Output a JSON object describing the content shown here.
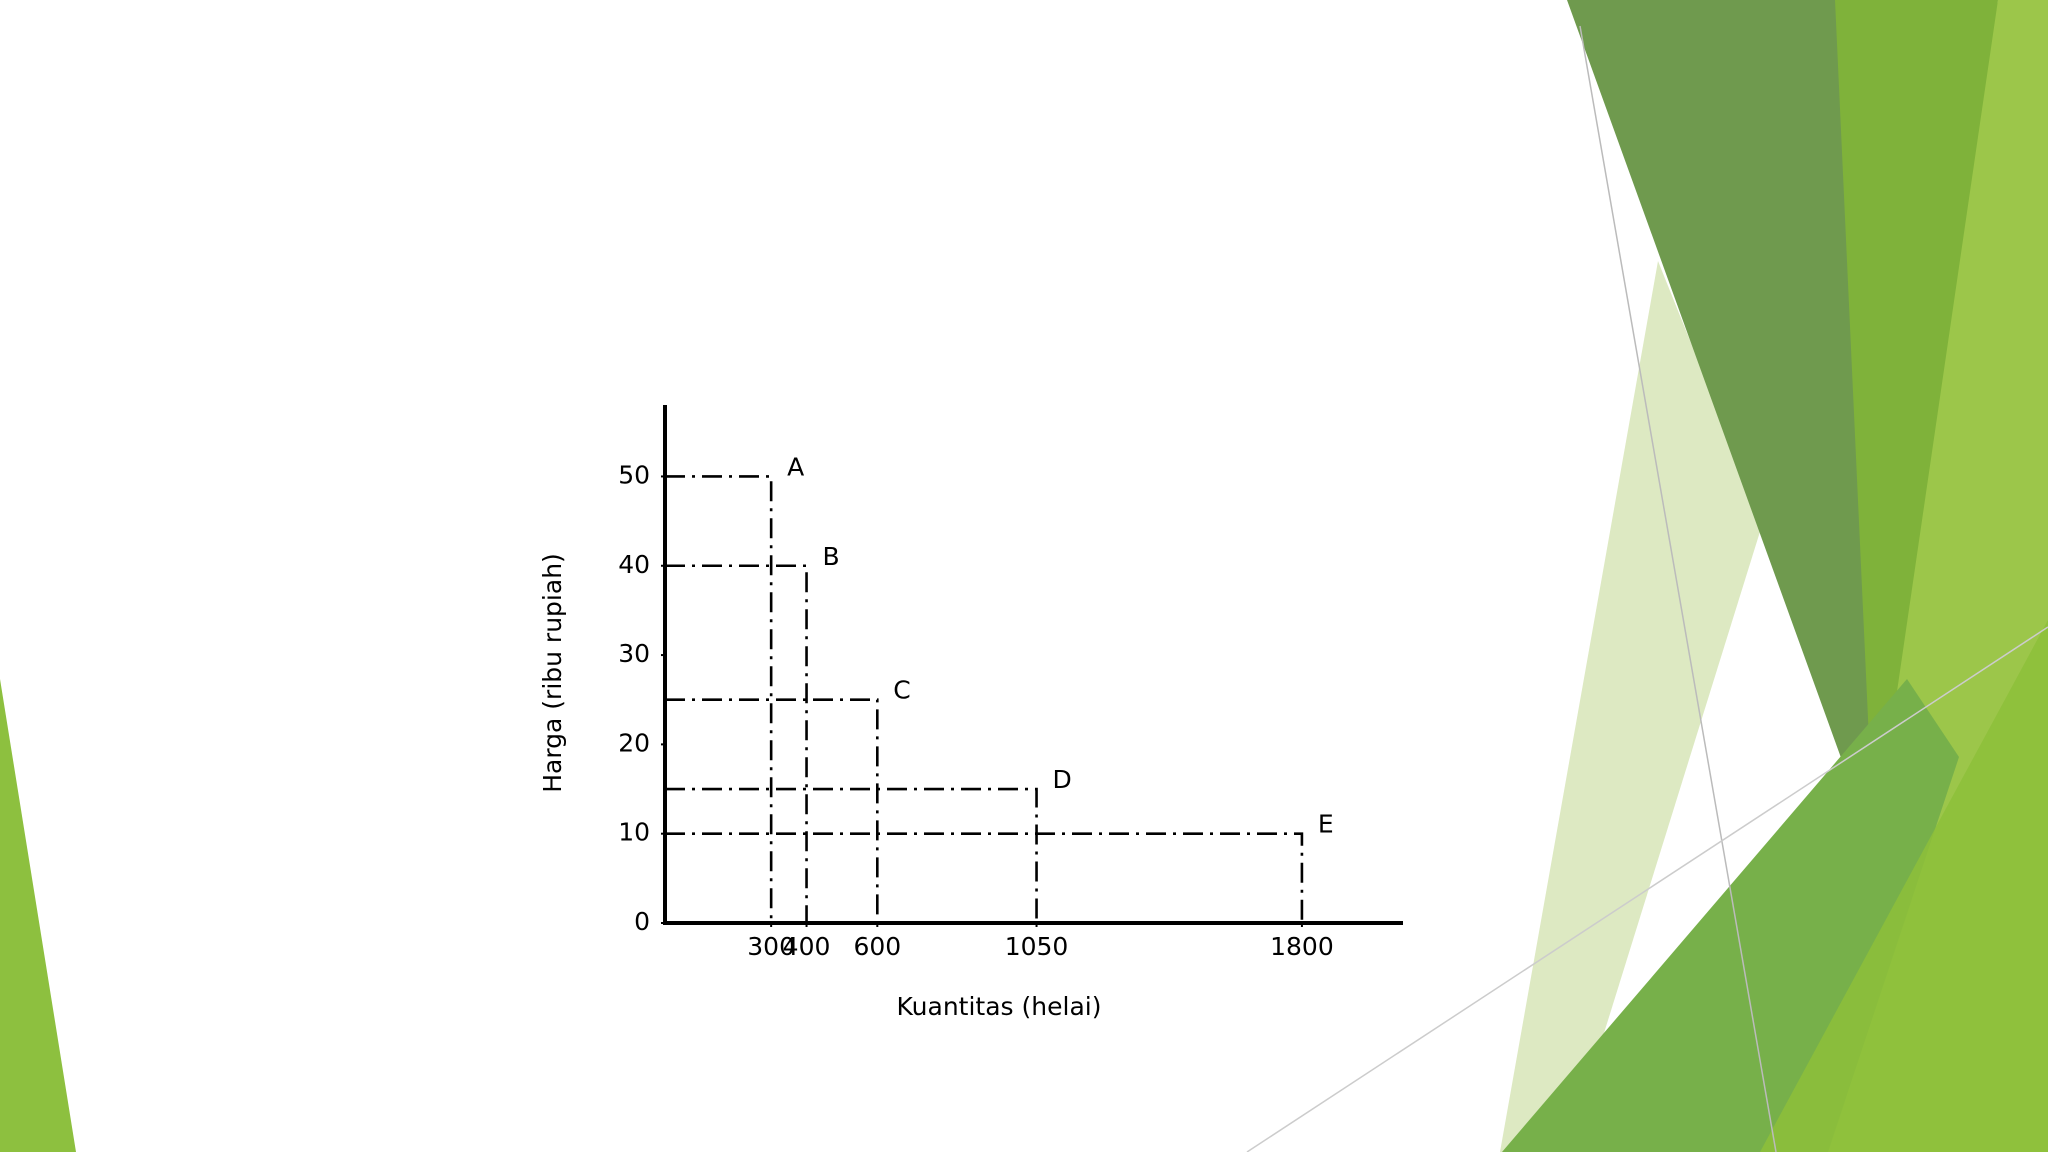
{
  "chart_data": {
    "type": "scatter",
    "xlabel": "Kuantitas (helai)",
    "ylabel": "Harga (ribu rupiah)",
    "x": [
      300,
      400,
      600,
      1050,
      1800
    ],
    "values": [
      50,
      40,
      25,
      15,
      10
    ],
    "point_labels": [
      "A",
      "B",
      "C",
      "D",
      "E"
    ],
    "xlim": [
      0,
      2080
    ],
    "ylim": [
      0,
      58
    ],
    "xticks": [
      300,
      400,
      600,
      1050,
      1800
    ],
    "yticks": [
      0,
      10,
      20,
      30,
      40,
      50
    ],
    "color": "#000000"
  }
}
